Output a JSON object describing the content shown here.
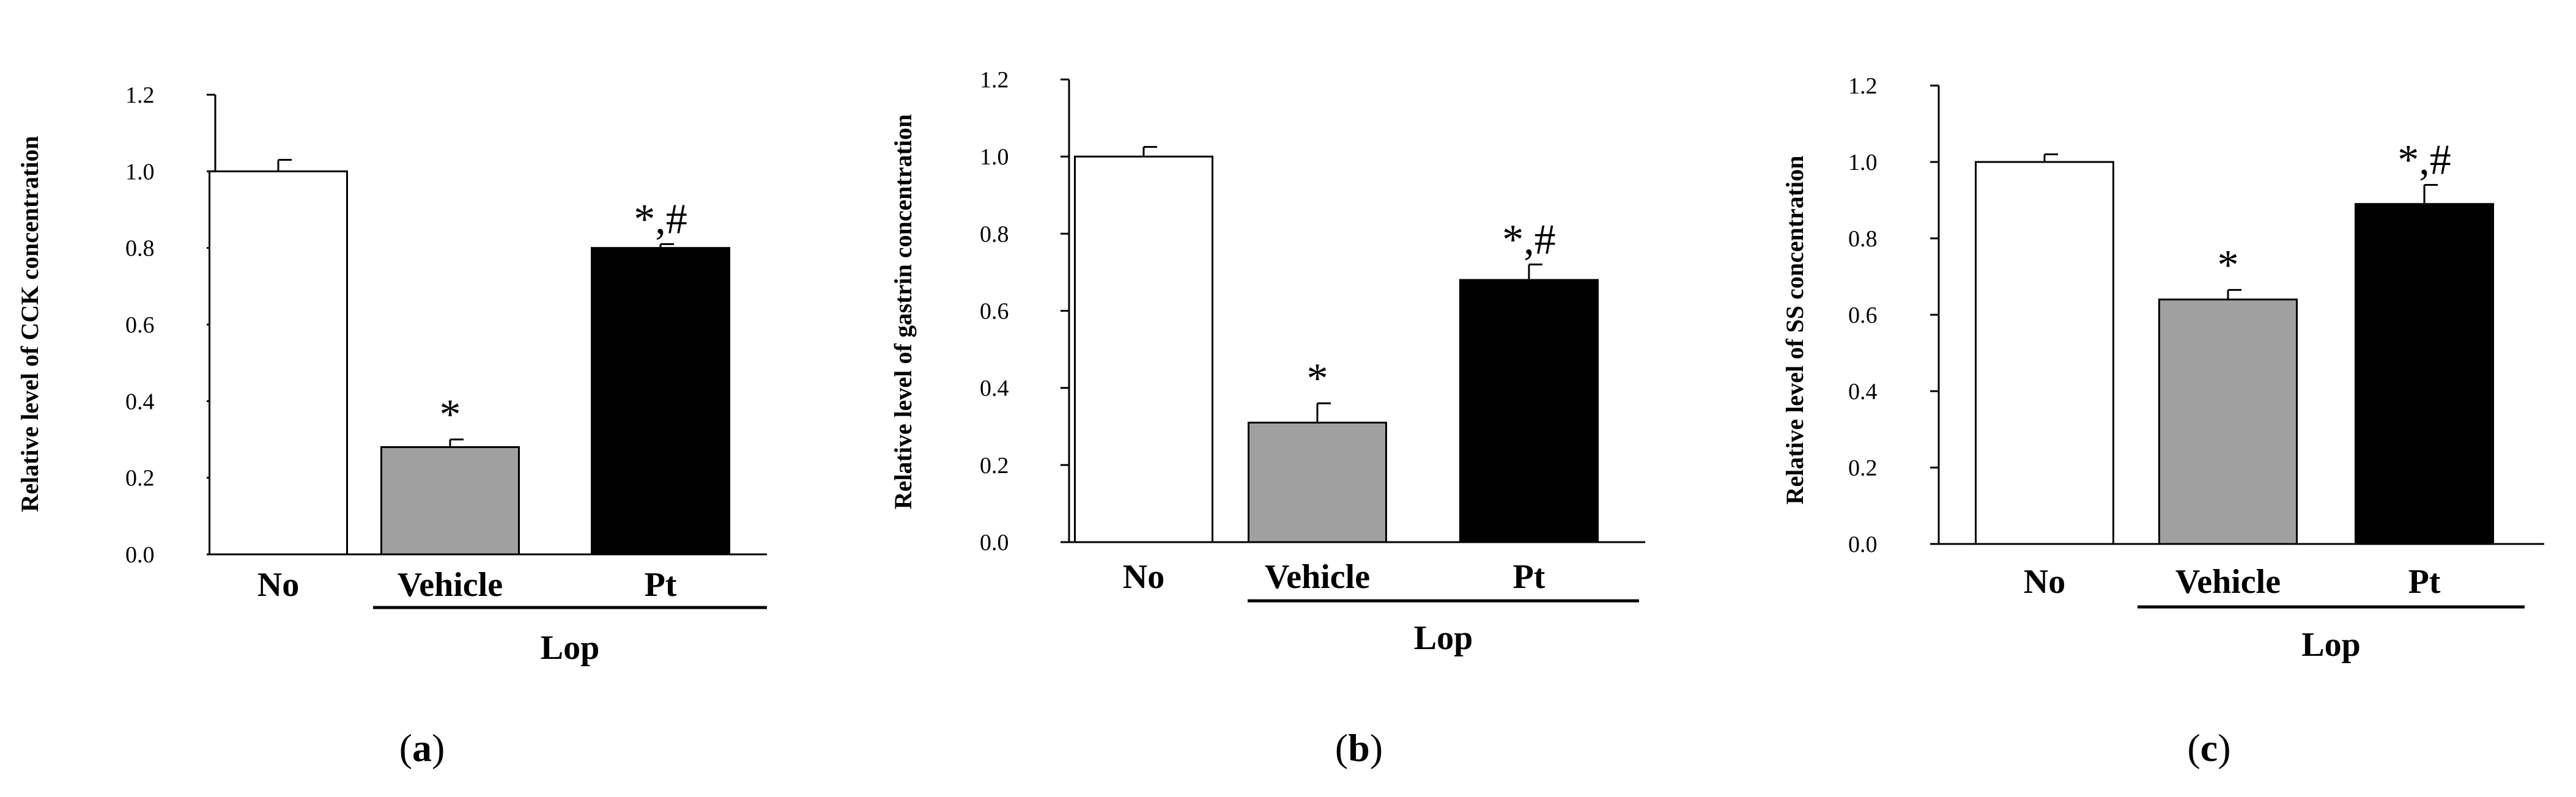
{
  "chart_data": [
    {
      "type": "bar",
      "panel_label": "(a)",
      "ylabel": "Relative  level of CCK  concentration",
      "ylim": [
        0,
        1.2
      ],
      "yticks": [
        "0.0",
        "0.2",
        "0.4",
        "0.6",
        "0.8",
        "1.0",
        "1.2"
      ],
      "categories": [
        "No",
        "Vehicle",
        "Pt"
      ],
      "values": [
        1.0,
        0.28,
        0.8
      ],
      "errors": [
        0.03,
        0.02,
        0.01
      ],
      "annotations": [
        "",
        "*",
        "*,#"
      ],
      "bar_colors": [
        "#ffffff",
        "#a0a0a0",
        "#000000"
      ],
      "group_label": "Lop"
    },
    {
      "type": "bar",
      "panel_label": "(b)",
      "ylabel": "Relative  level of gastrin concentration",
      "ylim": [
        0,
        1.2
      ],
      "yticks": [
        "0.0",
        "0.2",
        "0.4",
        "0.6",
        "0.8",
        "1.0",
        "1.2"
      ],
      "categories": [
        "No",
        "Vehicle",
        "Pt"
      ],
      "values": [
        1.0,
        0.31,
        0.68
      ],
      "errors": [
        0.025,
        0.05,
        0.04
      ],
      "annotations": [
        "",
        "*",
        "*,#"
      ],
      "bar_colors": [
        "#ffffff",
        "#a0a0a0",
        "#000000"
      ],
      "group_label": "Lop"
    },
    {
      "type": "bar",
      "panel_label": "(c)",
      "ylabel": "Relative level of SS concentration",
      "ylim": [
        0,
        1.2
      ],
      "yticks": [
        "0.0",
        "0.2",
        "0.4",
        "0.6",
        "0.8",
        "1.0",
        "1.2"
      ],
      "categories": [
        "No",
        "Vehicle",
        "Pt"
      ],
      "values": [
        1.0,
        0.64,
        0.89
      ],
      "errors": [
        0.02,
        0.025,
        0.05
      ],
      "annotations": [
        "",
        "*",
        "*,#"
      ],
      "bar_colors": [
        "#ffffff",
        "#a0a0a0",
        "#000000"
      ],
      "group_label": "Lop"
    }
  ]
}
